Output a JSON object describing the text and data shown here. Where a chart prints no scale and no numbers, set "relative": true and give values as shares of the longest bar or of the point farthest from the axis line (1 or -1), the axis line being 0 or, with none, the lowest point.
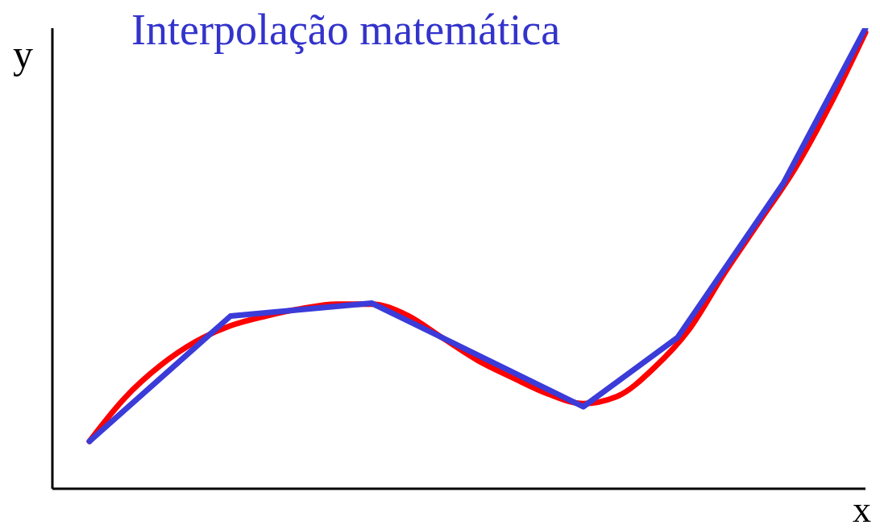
{
  "chart_data": {
    "type": "line",
    "title": "Interpolação matemática",
    "xlabel": "x",
    "ylabel": "y",
    "relative": true,
    "grid": false,
    "legend": false,
    "marker": "none",
    "line_style": "solid",
    "categories": [
      null,
      null,
      null,
      null,
      null,
      null,
      null,
      null,
      null,
      null,
      null,
      null,
      null,
      null,
      null,
      null,
      null,
      null,
      null,
      null,
      null,
      null,
      null,
      null,
      null,
      null,
      null,
      null,
      null,
      null,
      null,
      null,
      null,
      null,
      null,
      null,
      null,
      null,
      null,
      null,
      null,
      null,
      null,
      null,
      null,
      null,
      null,
      null,
      null,
      null,
      null,
      null,
      null,
      null,
      null,
      null,
      null,
      null,
      null,
      null,
      null,
      null,
      null,
      null,
      null,
      null,
      null
    ],
    "series": [
      {
        "color": "#ff0000",
        "values": [
          0.103,
          null,
          null,
          0.197,
          null,
          null,
          0.267,
          null,
          null,
          0.319,
          null,
          null,
          0.354,
          null,
          null,
          0.375,
          null,
          null,
          0.391,
          null,
          null,
          0.401,
          null,
          null,
          0.401,
          null,
          null,
          0.377,
          null,
          null,
          0.328,
          null,
          null,
          0.279,
          null,
          null,
          0.241,
          null,
          null,
          0.206,
          null,
          null,
          0.185,
          null,
          null,
          0.202,
          null,
          null,
          0.262,
          null,
          null,
          0.346,
          null,
          null,
          0.468,
          null,
          null,
          0.581,
          null,
          null,
          0.695,
          null,
          null,
          0.834,
          null,
          null,
          0.991
        ]
      },
      {
        "color": "#3b3bd9",
        "values": [
          0.103,
          null,
          null,
          null,
          null,
          null,
          null,
          null,
          null,
          null,
          null,
          null,
          0.375,
          null,
          null,
          null,
          null,
          null,
          null,
          null,
          null,
          null,
          null,
          null,
          0.403,
          null,
          null,
          null,
          null,
          null,
          null,
          null,
          null,
          null,
          null,
          null,
          null,
          null,
          null,
          null,
          null,
          null,
          0.178,
          null,
          null,
          null,
          null,
          null,
          null,
          null,
          0.328,
          null,
          null,
          null,
          null,
          null,
          null,
          null,
          null,
          0.663,
          null,
          null,
          null,
          null,
          null,
          null,
          1
        ]
      }
    ]
  }
}
